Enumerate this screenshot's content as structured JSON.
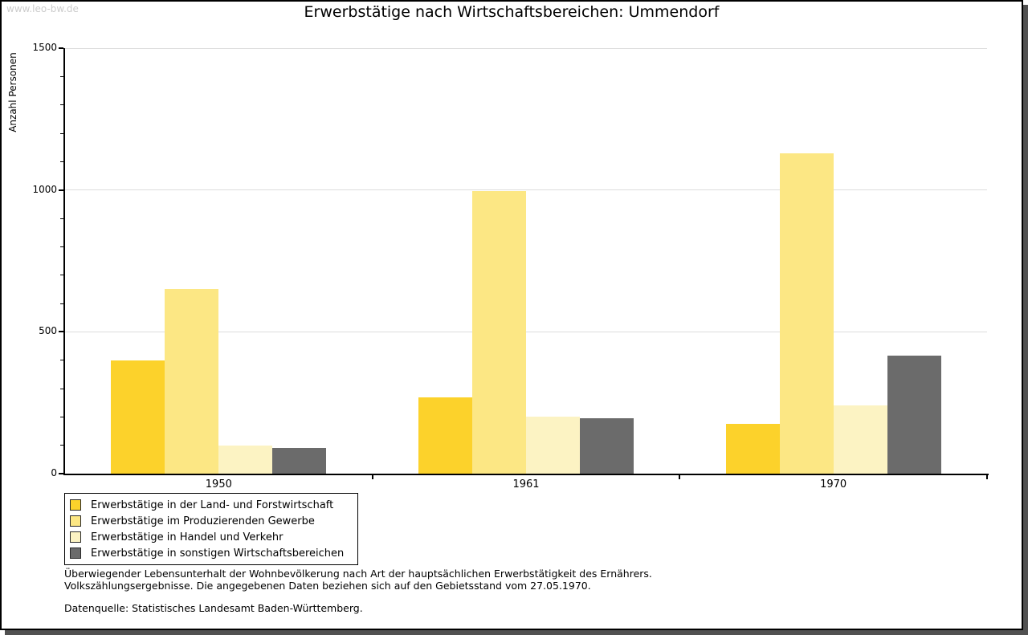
{
  "page": {
    "watermark": "www.leo-bw.de",
    "title": "Erwerbstätige nach Wirtschaftsbereichen: Ummendorf",
    "footnote_line1": "Überwiegender Lebensunterhalt der Wohnbevölkerung nach Art der hauptsächlichen Erwerbstätigkeit des Ernährers.",
    "footnote_line2": "Volkszählungsergebnisse. Die angegebenen Daten beziehen sich auf den Gebietsstand vom 27.05.1970.",
    "source": "Datenquelle: Statistisches Landesamt Baden-Württemberg."
  },
  "colors": {
    "axis": "#000000",
    "gridline": "#DCDCDC",
    "watermark": "#CCCCCC",
    "frame_shadow": "#515151"
  },
  "chart_data": {
    "type": "bar",
    "title": "Erwerbstätige nach Wirtschaftsbereichen: Ummendorf",
    "xlabel": "",
    "ylabel": "Anzahl Personen",
    "categories": [
      "1950",
      "1961",
      "1970"
    ],
    "series": [
      {
        "name": "Erwerbstätige in der Land- und Forstwirtschaft",
        "color": "#FCD22B",
        "values": [
          400,
          270,
          175
        ]
      },
      {
        "name": "Erwerbstätige im Produzierenden Gewerbe",
        "color": "#FCE784",
        "values": [
          650,
          995,
          1130
        ]
      },
      {
        "name": "Erwerbstätige in Handel und Verkehr",
        "color": "#FCF3C3",
        "values": [
          100,
          200,
          240
        ]
      },
      {
        "name": "Erwerbstätige in sonstigen Wirtschaftsbereichen",
        "color": "#6B6B6B",
        "values": [
          90,
          195,
          415
        ]
      }
    ],
    "ylim": [
      0,
      1500
    ],
    "yticks": [
      0,
      500,
      1000,
      1500
    ],
    "minor_tick_step": 100,
    "grid": true,
    "legend_position": "bottom-left"
  }
}
